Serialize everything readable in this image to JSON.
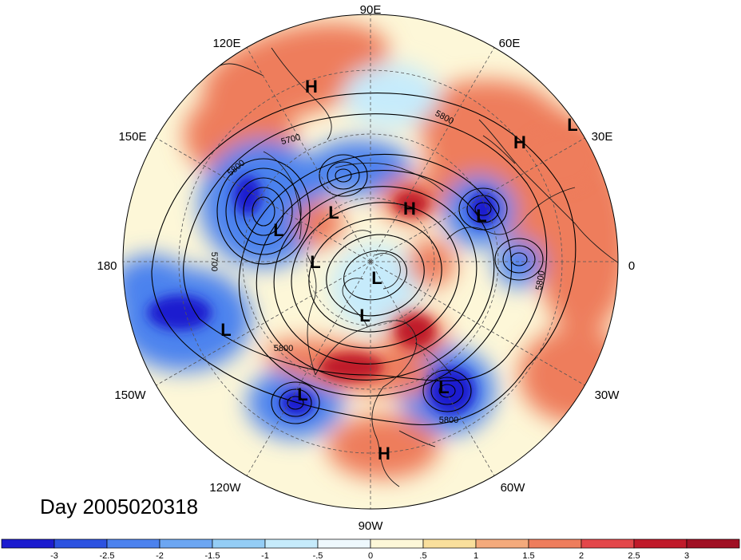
{
  "map": {
    "projection": "north polar stereographic",
    "title": "Day 2005020318",
    "longitude_labels": [
      "90E",
      "60E",
      "30E",
      "0",
      "30W",
      "60W",
      "90W",
      "120W",
      "150W",
      "180",
      "150E",
      "120E"
    ],
    "contour_labels": [
      "5800",
      "5700",
      "5800",
      "5700",
      "5800",
      "5800",
      "5800"
    ],
    "pressure_centers": [
      {
        "type": "H"
      },
      {
        "type": "L"
      },
      {
        "type": "H"
      },
      {
        "type": "L"
      },
      {
        "type": "H"
      },
      {
        "type": "L"
      },
      {
        "type": "L"
      },
      {
        "type": "L"
      },
      {
        "type": "L"
      },
      {
        "type": "L"
      },
      {
        "type": "L"
      },
      {
        "type": "L"
      },
      {
        "type": "L"
      },
      {
        "type": "H"
      }
    ]
  },
  "colorbar": {
    "tick_labels": [
      "-3",
      "-2.5",
      "-2",
      "-1.5",
      "-1",
      "-.5",
      "0",
      ".5",
      "1",
      "1.5",
      "2",
      "2.5",
      "3"
    ],
    "colors": [
      "#1c1ccf",
      "#2c52e0",
      "#4c82ee",
      "#6ca6f2",
      "#94cdf5",
      "#c6ebfb",
      "#eef8fd",
      "#fdf7d8",
      "#f9df9c",
      "#f4aa7c",
      "#ee7d5c",
      "#e3474a",
      "#c01a2a",
      "#a01024"
    ]
  },
  "anomaly_colors": {
    "strong_negative": "#1c1ccf",
    "negative": "#4c82ee",
    "weak_negative": "#c6ebfb",
    "weak_positive": "#fdf7d8",
    "positive": "#ee7d5c",
    "strong_positive": "#c01a2a"
  }
}
